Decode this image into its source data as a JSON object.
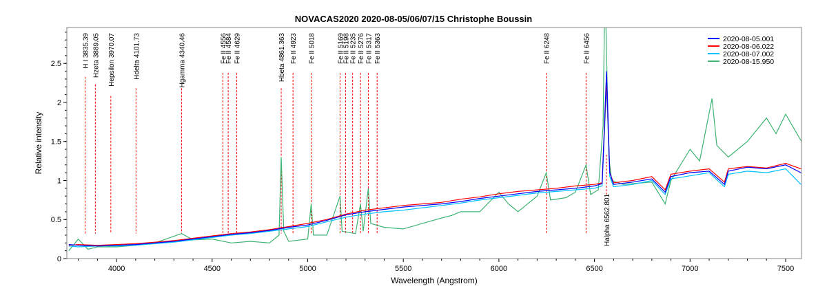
{
  "chart_data": {
    "type": "line",
    "title": "NOVACAS2020   2020-08-05/06/07/15   Christophe Boussin",
    "xlabel": "Wavelength (Angstrom)",
    "ylabel": "Relative intensity",
    "xlim": [
      3740,
      7583
    ],
    "ylim": [
      0,
      2.96
    ],
    "xticks": [
      4000,
      4500,
      5000,
      5500,
      6000,
      6500,
      7000,
      7500
    ],
    "yticks": [
      0,
      0.5,
      1,
      1.5,
      2,
      2.5
    ],
    "ytick_labels": [
      "0",
      "0.5",
      "1",
      "1.5",
      "2",
      "2.5"
    ],
    "grid": false,
    "legend_position": "top-right",
    "series": [
      {
        "name": "2020-08-05.001",
        "color": "#0000ff",
        "x": [
          3750,
          3800,
          3900,
          4000,
          4100,
          4200,
          4300,
          4400,
          4500,
          4600,
          4700,
          4800,
          4900,
          5000,
          5100,
          5200,
          5300,
          5400,
          5500,
          5600,
          5700,
          5800,
          5900,
          6000,
          6100,
          6200,
          6300,
          6400,
          6500,
          6540,
          6563,
          6580,
          6600,
          6700,
          6800,
          6870,
          6900,
          7000,
          7100,
          7180,
          7200,
          7300,
          7400,
          7500,
          7580
        ],
        "y": [
          0.18,
          0.17,
          0.16,
          0.17,
          0.18,
          0.2,
          0.22,
          0.25,
          0.28,
          0.31,
          0.33,
          0.36,
          0.4,
          0.43,
          0.49,
          0.56,
          0.6,
          0.63,
          0.66,
          0.68,
          0.7,
          0.73,
          0.77,
          0.8,
          0.83,
          0.86,
          0.88,
          0.9,
          0.93,
          0.96,
          2.4,
          1.1,
          0.95,
          0.98,
          1.02,
          0.85,
          1.05,
          1.1,
          1.12,
          0.95,
          1.12,
          1.17,
          1.15,
          1.2,
          1.1
        ]
      },
      {
        "name": "2020-08-06.022",
        "color": "#ff0000",
        "x": [
          3750,
          3800,
          3900,
          4000,
          4100,
          4200,
          4300,
          4400,
          4500,
          4600,
          4700,
          4800,
          4900,
          5000,
          5100,
          5200,
          5300,
          5400,
          5500,
          5600,
          5700,
          5800,
          5900,
          6000,
          6100,
          6200,
          6300,
          6400,
          6500,
          6540,
          6563,
          6580,
          6600,
          6700,
          6800,
          6870,
          6900,
          7000,
          7100,
          7180,
          7200,
          7300,
          7400,
          7500,
          7580
        ],
        "y": [
          0.17,
          0.18,
          0.17,
          0.18,
          0.19,
          0.21,
          0.23,
          0.26,
          0.29,
          0.32,
          0.34,
          0.37,
          0.41,
          0.45,
          0.5,
          0.57,
          0.62,
          0.65,
          0.68,
          0.7,
          0.72,
          0.76,
          0.79,
          0.83,
          0.86,
          0.88,
          0.9,
          0.93,
          0.95,
          0.97,
          2.3,
          1.1,
          0.97,
          1.0,
          1.05,
          0.88,
          1.08,
          1.12,
          1.15,
          0.98,
          1.15,
          1.18,
          1.16,
          1.22,
          1.15
        ]
      },
      {
        "name": "2020-08-07.002",
        "color": "#00c0ff",
        "x": [
          3750,
          3800,
          3900,
          4000,
          4100,
          4200,
          4300,
          4400,
          4500,
          4600,
          4700,
          4800,
          4900,
          5000,
          5100,
          5200,
          5300,
          5400,
          5500,
          5600,
          5700,
          5800,
          5900,
          6000,
          6100,
          6200,
          6300,
          6400,
          6500,
          6540,
          6563,
          6580,
          6600,
          6700,
          6800,
          6870,
          6900,
          7000,
          7100,
          7180,
          7200,
          7300,
          7400,
          7500,
          7580
        ],
        "y": [
          0.16,
          0.15,
          0.16,
          0.16,
          0.17,
          0.19,
          0.21,
          0.24,
          0.27,
          0.3,
          0.32,
          0.35,
          0.38,
          0.41,
          0.47,
          0.53,
          0.57,
          0.6,
          0.62,
          0.65,
          0.68,
          0.71,
          0.75,
          0.78,
          0.81,
          0.84,
          0.86,
          0.88,
          0.9,
          0.93,
          2.2,
          1.05,
          0.92,
          0.95,
          1.0,
          0.82,
          1.02,
          1.06,
          1.1,
          0.92,
          1.08,
          1.12,
          1.1,
          1.15,
          0.95
        ]
      },
      {
        "name": "2020-08-15.950",
        "color": "#3cb371",
        "x": [
          3750,
          3800,
          3850,
          3900,
          4000,
          4100,
          4200,
          4340,
          4400,
          4500,
          4600,
          4700,
          4800,
          4850,
          4861,
          4875,
          4900,
          5000,
          5018,
          5030,
          5100,
          5169,
          5180,
          5250,
          5276,
          5290,
          5317,
          5330,
          5400,
          5500,
          5600,
          5700,
          5750,
          5800,
          5900,
          6000,
          6050,
          6100,
          6200,
          6248,
          6270,
          6350,
          6400,
          6456,
          6480,
          6520,
          6545,
          6552,
          6560,
          6575,
          6590,
          6650,
          6800,
          6870,
          6900,
          7000,
          7050,
          7115,
          7140,
          7200,
          7300,
          7400,
          7450,
          7500,
          7583
        ],
        "y": [
          0.1,
          0.25,
          0.12,
          0.15,
          0.15,
          0.17,
          0.2,
          0.32,
          0.24,
          0.25,
          0.2,
          0.22,
          0.2,
          0.3,
          1.3,
          0.35,
          0.22,
          0.25,
          0.7,
          0.3,
          0.3,
          0.8,
          0.35,
          0.32,
          0.7,
          0.35,
          0.9,
          0.45,
          0.4,
          0.38,
          0.45,
          0.52,
          0.55,
          0.6,
          0.6,
          0.85,
          0.7,
          0.6,
          0.8,
          1.1,
          0.75,
          0.78,
          0.85,
          1.2,
          0.82,
          0.88,
          1.7,
          3.0,
          3.0,
          1.3,
          1.0,
          0.95,
          0.98,
          0.7,
          1.0,
          1.4,
          1.25,
          2.05,
          1.45,
          1.3,
          1.5,
          1.8,
          1.6,
          1.85,
          1.5
        ]
      }
    ],
    "line_markers": [
      {
        "label": "H I 3835.39",
        "wavelength": 3835.39
      },
      {
        "label": "Hzeta 3889.05",
        "wavelength": 3889.05
      },
      {
        "label": "Hepsilon 3970.07",
        "wavelength": 3970.07
      },
      {
        "label": "Hdelta 4101.73",
        "wavelength": 4101.73
      },
      {
        "label": "Hgamma 4340.46",
        "wavelength": 4340.46
      },
      {
        "label": "Fe II 4556",
        "wavelength": 4556
      },
      {
        "label": "Fe II 4584",
        "wavelength": 4584
      },
      {
        "label": "Fe II 4629",
        "wavelength": 4629
      },
      {
        "label": "Hbeta 4861.363",
        "wavelength": 4861.363
      },
      {
        "label": "Fe II 4923",
        "wavelength": 4923
      },
      {
        "label": "Fe II 5018",
        "wavelength": 5018
      },
      {
        "label": "Fe II 5169",
        "wavelength": 5169
      },
      {
        "label": "Fe II 5198",
        "wavelength": 5198
      },
      {
        "label": "Fe II 5235",
        "wavelength": 5235
      },
      {
        "label": "Fe II 5276",
        "wavelength": 5276
      },
      {
        "label": "Fe II 5317",
        "wavelength": 5317
      },
      {
        "label": "Fe II 5363",
        "wavelength": 5363
      },
      {
        "label": "Fe II 6248",
        "wavelength": 6248
      },
      {
        "label": "Fe II 6456",
        "wavelength": 6456
      },
      {
        "label": "Halpha 6562.801",
        "wavelength": 6562.801
      }
    ]
  }
}
